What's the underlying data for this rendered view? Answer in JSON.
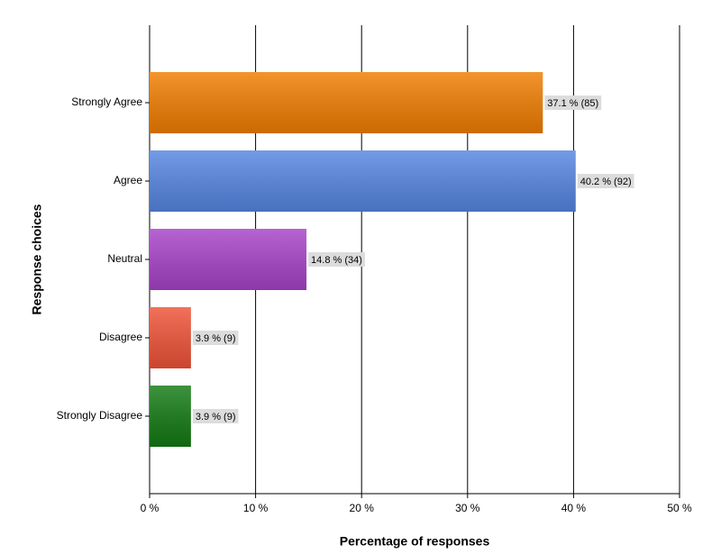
{
  "chart_data": {
    "type": "hbar",
    "x_label": "Percentage of responses",
    "y_label": "Response choices",
    "categories": [
      "Strongly Agree",
      "Agree",
      "Neutral",
      "Disagree",
      "Strongly Disagree"
    ],
    "values": [
      37.1,
      40.2,
      14.8,
      3.9,
      3.9
    ],
    "value_labels": [
      "37.1 % (85)",
      "40.2 % (92)",
      "14.8 % (34)",
      "3.9 % (9)",
      "3.9 % (9)"
    ],
    "colors": [
      "#f07d00",
      "#5585e0",
      "#a742c8",
      "#ef5236",
      "#137a13"
    ],
    "xlim": [
      0,
      50
    ],
    "xticks": [
      {
        "value": 0,
        "label": "0 %"
      },
      {
        "value": 10,
        "label": "10 %"
      },
      {
        "value": 20,
        "label": "20 %"
      },
      {
        "value": 30,
        "label": "30 %"
      },
      {
        "value": 40,
        "label": "40 %"
      },
      {
        "value": 50,
        "label": "50 %"
      }
    ],
    "grid": true
  }
}
